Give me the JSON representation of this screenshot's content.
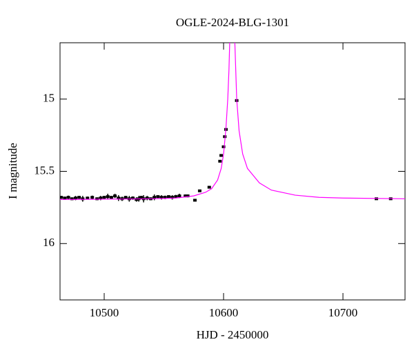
{
  "chart_data": {
    "type": "scatter",
    "title": "OGLE-2024-BLG-1301",
    "x_label": "HJD - 2450000",
    "y_label": "I magnitude",
    "xlim": [
      10463,
      10752
    ],
    "ylim": [
      14.61,
      16.39
    ],
    "y_inverted": true,
    "xticks": [
      10500,
      10600,
      10700
    ],
    "yticks": [
      15,
      15.5,
      16
    ],
    "series": [
      {
        "type": "errorbar",
        "color": "#000000",
        "x": [
          10464,
          10467,
          10470,
          10473,
          10476,
          10479,
          10482,
          10486,
          10490,
          10494,
          10497,
          10500,
          10503,
          10506,
          10509,
          10512,
          10515,
          10518,
          10521,
          10524,
          10527,
          10529,
          10531,
          10533,
          10536,
          10539,
          10542,
          10545,
          10548,
          10551,
          10554,
          10557,
          10560,
          10563,
          10568,
          10570,
          10576,
          10580,
          10588,
          10597,
          10598,
          10600,
          10601,
          10602,
          10611,
          10728,
          10740
        ],
        "values": [
          15.68,
          15.685,
          15.68,
          15.69,
          15.685,
          15.68,
          15.69,
          15.685,
          15.68,
          15.69,
          15.685,
          15.68,
          15.675,
          15.68,
          15.67,
          15.685,
          15.69,
          15.68,
          15.69,
          15.685,
          15.695,
          15.69,
          15.68,
          15.69,
          15.685,
          15.69,
          15.68,
          15.675,
          15.68,
          15.68,
          15.675,
          15.68,
          15.675,
          15.67,
          15.67,
          15.67,
          15.7,
          15.635,
          15.61,
          15.43,
          15.39,
          15.33,
          15.26,
          15.21,
          15.01,
          15.69,
          15.69
        ],
        "errors": [
          0.01,
          0.01,
          0.012,
          0.01,
          0.015,
          0.01,
          0.02,
          0.01,
          0.012,
          0.01,
          0.015,
          0.01,
          0.02,
          0.01,
          0.015,
          0.02,
          0.015,
          0.01,
          0.02,
          0.012,
          0.015,
          0.02,
          0.01,
          0.025,
          0.015,
          0.01,
          0.02,
          0.01,
          0.015,
          0.012,
          0.01,
          0.015,
          0.012,
          0.015,
          0.01,
          0.01,
          0.008,
          0.008,
          0.008,
          0.008,
          0.008,
          0.008,
          0.008,
          0.008,
          0.008,
          0.008,
          0.008
        ]
      },
      {
        "type": "line",
        "color": "#ff00ff",
        "x": [
          10463,
          10500,
          10540,
          10560,
          10575,
          10585,
          10590,
          10595,
          10598,
          10600,
          10602,
          10603.5,
          10604.5,
          10605.5,
          10607.2,
          10609,
          10610,
          10611,
          10613,
          10616,
          10620,
          10630,
          10640,
          10660,
          10680,
          10700,
          10752
        ],
        "values": [
          15.695,
          15.693,
          15.69,
          15.685,
          15.67,
          15.645,
          15.62,
          15.56,
          15.48,
          15.38,
          15.2,
          15.0,
          14.8,
          14.5,
          14.3,
          14.5,
          14.75,
          15.0,
          15.22,
          15.38,
          15.48,
          15.58,
          15.63,
          15.665,
          15.68,
          15.685,
          15.69
        ]
      }
    ]
  }
}
